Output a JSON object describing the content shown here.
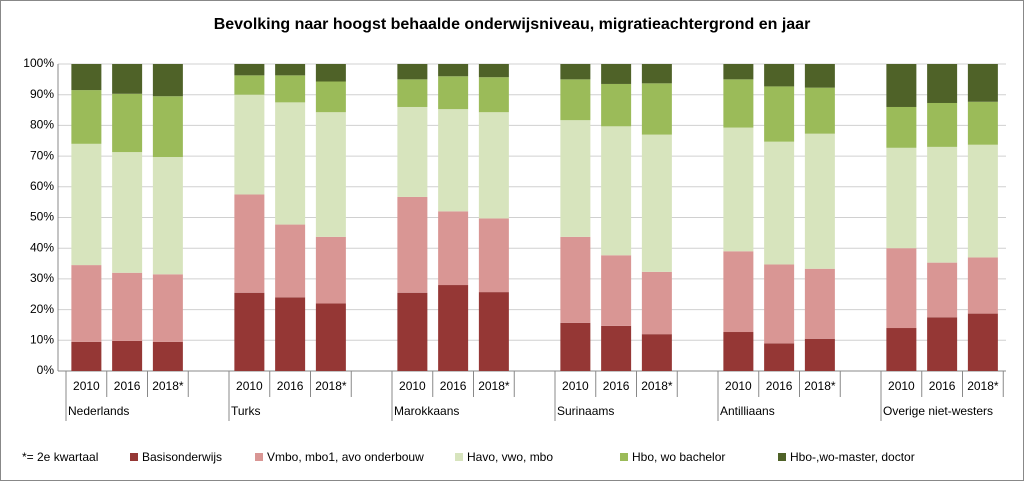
{
  "chart_data": {
    "type": "stacked_bar",
    "title": "Bevolking naar hoogst behaalde onderwijsniveau, migratieachtergrond en jaar",
    "note": "*= 2e kwartaal",
    "groups": [
      "Nederlands",
      "Turks",
      "Marokkaans",
      "Surinaams",
      "Antilliaans",
      "Overige niet-westers"
    ],
    "categories": [
      "2010",
      "2016",
      "2018*",
      "2010",
      "2016",
      "2018*",
      "2010",
      "2016",
      "2018*",
      "2010",
      "2016",
      "2018*",
      "2010",
      "2016",
      "2018*",
      "2010",
      "2016",
      "2018*"
    ],
    "series": [
      {
        "name": "Basisonderwijs",
        "color": "#953735",
        "values": [
          9.5,
          9.8,
          9.5,
          25.5,
          24,
          22,
          25.5,
          28,
          25.7,
          15.7,
          14.7,
          12,
          12.7,
          9,
          10.5,
          14,
          17.5,
          18.7
        ]
      },
      {
        "name": "Vmbo, mbo1, avo onderbouw",
        "color": "#d99694",
        "values": [
          25,
          22.2,
          22,
          32,
          23.7,
          21.7,
          31.2,
          24,
          24,
          28,
          23,
          20.3,
          26.3,
          25.7,
          22.8,
          26,
          17.8,
          18.3
        ]
      },
      {
        "name": "Havo, vwo, mbo",
        "color": "#d7e4bd",
        "values": [
          39.5,
          39.3,
          38.2,
          32.5,
          39.8,
          40.6,
          29.3,
          33.3,
          34.6,
          38,
          42,
          44.7,
          40.3,
          40,
          44,
          32.7,
          37.7,
          36.7
        ]
      },
      {
        "name": "Hbo, wo bachelor",
        "color": "#9bbb59",
        "values": [
          17.5,
          19,
          19.8,
          6.3,
          8.8,
          10,
          9,
          10.7,
          11.4,
          13.3,
          13.8,
          16.7,
          15.7,
          18,
          15,
          13.3,
          14.3,
          14
        ]
      },
      {
        "name": "Hbo-,wo-master, doctor",
        "color": "#4f6228",
        "values": [
          8.5,
          9.7,
          10.5,
          3.7,
          3.7,
          5.7,
          5,
          4,
          4.3,
          5,
          6.5,
          6.3,
          5,
          7.3,
          7.7,
          14,
          12.7,
          12.3
        ]
      }
    ],
    "ylim": [
      0,
      100
    ],
    "yticks": [
      {
        "value": 0,
        "label": "0%"
      },
      {
        "value": 10,
        "label": "10%"
      },
      {
        "value": 20,
        "label": "20%"
      },
      {
        "value": 30,
        "label": "30%"
      },
      {
        "value": 40,
        "label": "40%"
      },
      {
        "value": 50,
        "label": "50%"
      },
      {
        "value": 60,
        "label": "60%"
      },
      {
        "value": 70,
        "label": "70%"
      },
      {
        "value": 80,
        "label": "80%"
      },
      {
        "value": 90,
        "label": "90%"
      },
      {
        "value": 100,
        "label": "100%"
      }
    ],
    "grid": true
  }
}
